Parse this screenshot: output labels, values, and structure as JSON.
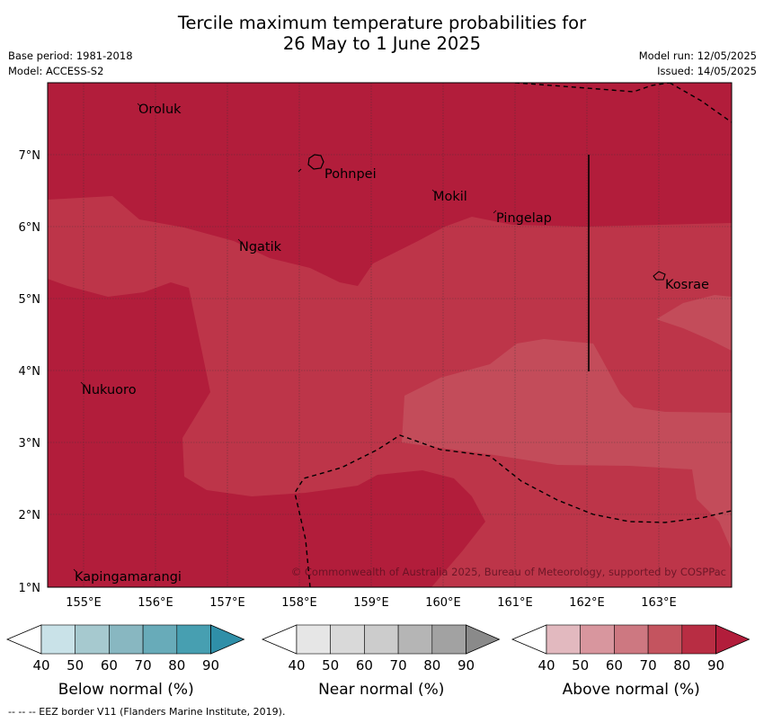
{
  "title_line1": "Tercile maximum temperature probabilities for",
  "title_line2": "26 May to 1 June 2025",
  "base_period": "Base period: 1981-2018",
  "model": "Model: ACCESS-S2",
  "model_run": "Model run: 12/05/2025",
  "issued": "Issued: 14/05/2025",
  "copyright": "© Commonwealth of Australia 2025, Bureau of Meteorology, supported by COSPPac",
  "eez_note": "-- -- -- EEZ border V11 (Flanders Marine Institute, 2019).",
  "map": {
    "lon_labels": [
      "155°E",
      "156°E",
      "157°E",
      "158°E",
      "159°E",
      "160°E",
      "161°E",
      "162°E",
      "163°E"
    ],
    "lat_labels": [
      "7°N",
      "6°N",
      "5°N",
      "4°N",
      "3°N",
      "2°N",
      "1°N"
    ],
    "places": [
      {
        "name": "Oroluk"
      },
      {
        "name": "Pohnpei"
      },
      {
        "name": "Mokil"
      },
      {
        "name": "Pingelap"
      },
      {
        "name": "Ngatik"
      },
      {
        "name": "Kosrae"
      },
      {
        "name": "Nukuoro"
      },
      {
        "name": "Kapingamarangi"
      }
    ]
  },
  "colorbars": [
    {
      "label": "Below normal (%)",
      "ticks": [
        "40",
        "50",
        "60",
        "70",
        "80",
        "90"
      ],
      "colors": [
        "#c9e2e8",
        "#a6c9cf",
        "#88b7c1",
        "#68abb9",
        "#479fb1",
        "#2f8fa8"
      ]
    },
    {
      "label": "Near normal (%)",
      "ticks": [
        "40",
        "50",
        "60",
        "70",
        "80",
        "90"
      ],
      "colors": [
        "#e6e6e6",
        "#d9d9d9",
        "#cccccc",
        "#b5b5b5",
        "#a2a2a2",
        "#8a8a8a"
      ]
    },
    {
      "label": "Above normal (%)",
      "ticks": [
        "40",
        "50",
        "60",
        "70",
        "80",
        "90"
      ],
      "colors": [
        "#e2b9bf",
        "#d8969e",
        "#cd7881",
        "#c4545f",
        "#b82d43",
        "#b21d3b"
      ]
    }
  ],
  "colors": {
    "above_80_90": "#b21d3b",
    "above_70_80": "#bd3549",
    "above_60_70": "#c34c5a"
  }
}
